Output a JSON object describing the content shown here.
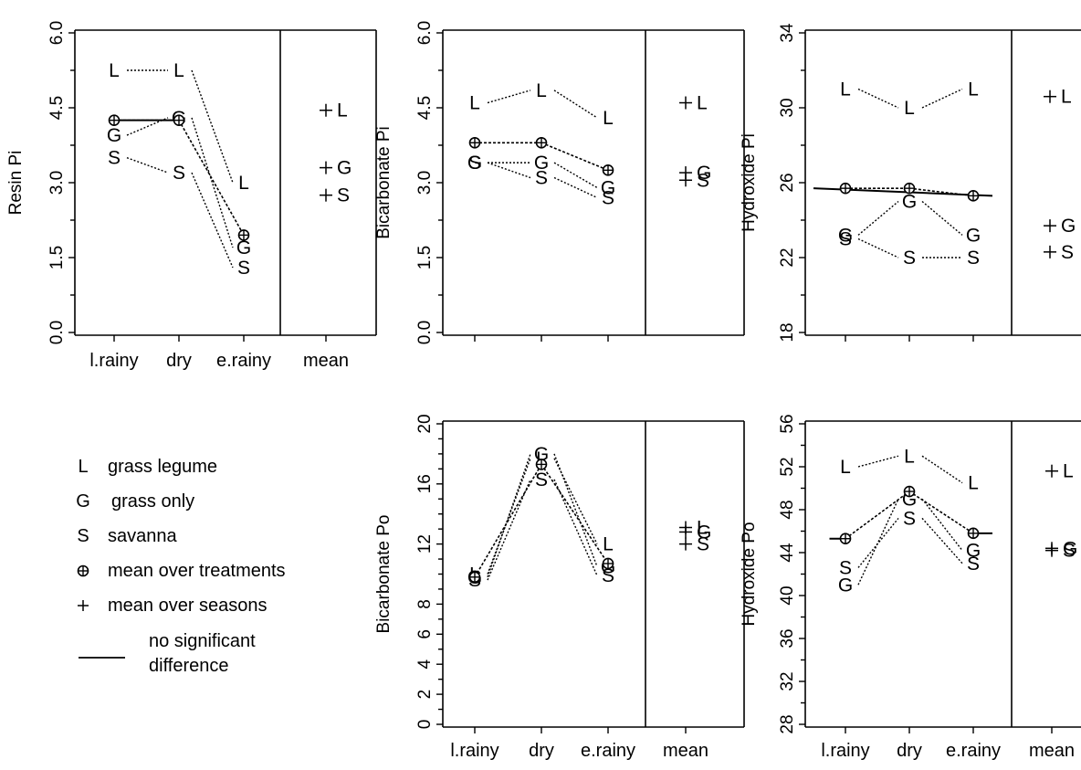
{
  "categories": [
    "l.rainy",
    "dry",
    "e.rainy",
    "mean"
  ],
  "legend": [
    {
      "symbol": "L",
      "label": "grass legume"
    },
    {
      "symbol": "G",
      "label": "grass only"
    },
    {
      "symbol": "S",
      "label": "savanna"
    },
    {
      "symbol": "⊕",
      "label": "mean over treatments"
    },
    {
      "symbol": "+",
      "label": "mean over seasons"
    },
    {
      "symbol": "line",
      "label": "no significant difference"
    }
  ],
  "legend_line_label": [
    "no significant",
    "difference"
  ],
  "chart_data": [
    {
      "type": "line",
      "ylabel": "Resin Pi",
      "ylim": [
        0,
        6
      ],
      "yticks": [
        "0.0",
        "1.5",
        "3.0",
        "4.5",
        "6.0"
      ],
      "xlabels_shown": true,
      "series": [
        {
          "name": "L",
          "values": [
            5.25,
            5.25,
            3.0
          ],
          "mean": 4.45
        },
        {
          "name": "G",
          "values": [
            3.95,
            4.3,
            1.7
          ],
          "mean": 3.3
        },
        {
          "name": "S",
          "values": [
            3.5,
            3.2,
            1.3
          ],
          "mean": 2.75
        }
      ],
      "treatment_mean": [
        4.25,
        4.25,
        1.95
      ],
      "nsd_segments": [
        [
          0,
          1
        ]
      ]
    },
    {
      "type": "line",
      "ylabel": "Bicarbonate Pi",
      "ylim": [
        0,
        6
      ],
      "yticks": [
        "0.0",
        "1.5",
        "3.0",
        "4.5",
        "6.0"
      ],
      "xlabels_shown": false,
      "series": [
        {
          "name": "L",
          "values": [
            4.6,
            4.85,
            4.3
          ],
          "mean": 4.6
        },
        {
          "name": "G",
          "values": [
            3.4,
            3.4,
            2.9
          ],
          "mean": 3.2
        },
        {
          "name": "S",
          "values": [
            3.4,
            3.1,
            2.7
          ],
          "mean": 3.05
        }
      ],
      "treatment_mean": [
        3.8,
        3.8,
        3.25
      ],
      "nsd_segments": []
    },
    {
      "type": "line",
      "ylabel": "Hydroxide Pi",
      "ylim": [
        18,
        34
      ],
      "yticks": [
        "18",
        "22",
        "26",
        "30",
        "34"
      ],
      "xlabels_shown": false,
      "series": [
        {
          "name": "L",
          "values": [
            31.0,
            30.0,
            31.0
          ],
          "mean": 30.6
        },
        {
          "name": "G",
          "values": [
            23.2,
            25.0,
            23.2
          ],
          "mean": 23.7
        },
        {
          "name": "S",
          "values": [
            23.0,
            22.0,
            22.0
          ],
          "mean": 22.3
        }
      ],
      "treatment_mean": [
        25.7,
        25.7,
        25.3
      ],
      "nsd_segments": [
        [
          -0.5,
          2.3
        ]
      ]
    },
    {
      "type": "line",
      "ylabel": "Bicarbonate Po",
      "ylim": [
        0,
        20
      ],
      "yticks": [
        "0",
        "2",
        "4",
        "6",
        "8",
        "12",
        "16",
        "20"
      ],
      "xlabels_shown": true,
      "series": [
        {
          "name": "L",
          "values": [
            10.0,
            17.7,
            12.0
          ],
          "mean": 13.1
        },
        {
          "name": "G",
          "values": [
            9.8,
            18.0,
            10.5
          ],
          "mean": 12.8
        },
        {
          "name": "S",
          "values": [
            9.6,
            16.3,
            9.9
          ],
          "mean": 12.0
        }
      ],
      "treatment_mean": [
        9.8,
        17.3,
        10.7
      ],
      "nsd_segments": []
    },
    {
      "type": "line",
      "ylabel": "Hydroxide Po",
      "ylim": [
        28,
        56
      ],
      "yticks": [
        "28",
        "32",
        "36",
        "40",
        "44",
        "48",
        "52",
        "56"
      ],
      "xlabels_shown": true,
      "series": [
        {
          "name": "L",
          "values": [
            52.0,
            53.0,
            50.5
          ],
          "mean": 51.6
        },
        {
          "name": "G",
          "values": [
            41.0,
            49.0,
            44.2
          ],
          "mean": 44.4
        },
        {
          "name": "S",
          "values": [
            42.6,
            47.2,
            43.0
          ],
          "mean": 44.2
        }
      ],
      "treatment_mean": [
        45.3,
        49.7,
        45.8
      ],
      "nsd_segments": [
        [
          -0.25,
          0
        ],
        [
          2,
          2.3
        ]
      ]
    }
  ]
}
